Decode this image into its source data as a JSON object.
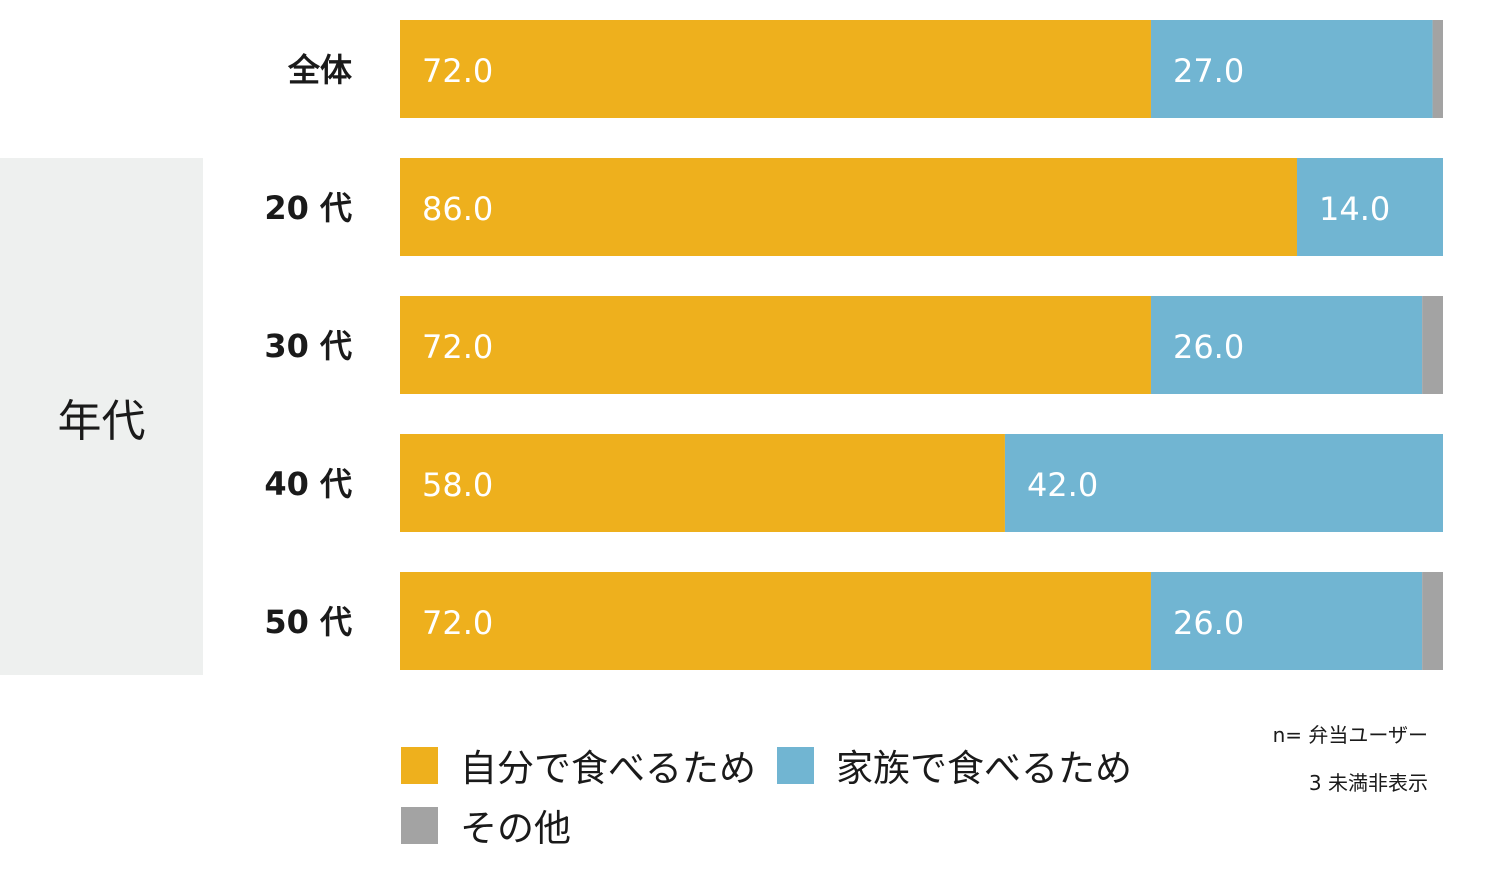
{
  "group_label": "年代",
  "notes": {
    "n": "n= 弁当ユーザー",
    "threshold": "3 未満非表示"
  },
  "chart_data": {
    "type": "bar",
    "orientation": "horizontal",
    "stacked": true,
    "categories": [
      "全体",
      "20 代",
      "30 代",
      "40 代",
      "50 代"
    ],
    "series": [
      {
        "name": "自分で食べるため",
        "color": "#eeb01d",
        "values": [
          72.0,
          86.0,
          72.0,
          58.0,
          72.0
        ]
      },
      {
        "name": "家族で食べるため",
        "color": "#71b5d2",
        "values": [
          27.0,
          14.0,
          26.0,
          42.0,
          26.0
        ]
      },
      {
        "name": "その他",
        "color": "#a3a3a3",
        "values": [
          1.0,
          0.0,
          2.0,
          0.0,
          2.0
        ]
      }
    ],
    "data_labels": [
      [
        "72.0",
        "27.0",
        ""
      ],
      [
        "86.0",
        "14.0",
        ""
      ],
      [
        "72.0",
        "26.0",
        ""
      ],
      [
        "58.0",
        "42.0",
        ""
      ],
      [
        "72.0",
        "26.0",
        ""
      ]
    ],
    "xlim": [
      0,
      100
    ],
    "grid": false,
    "legend_position": "bottom"
  }
}
